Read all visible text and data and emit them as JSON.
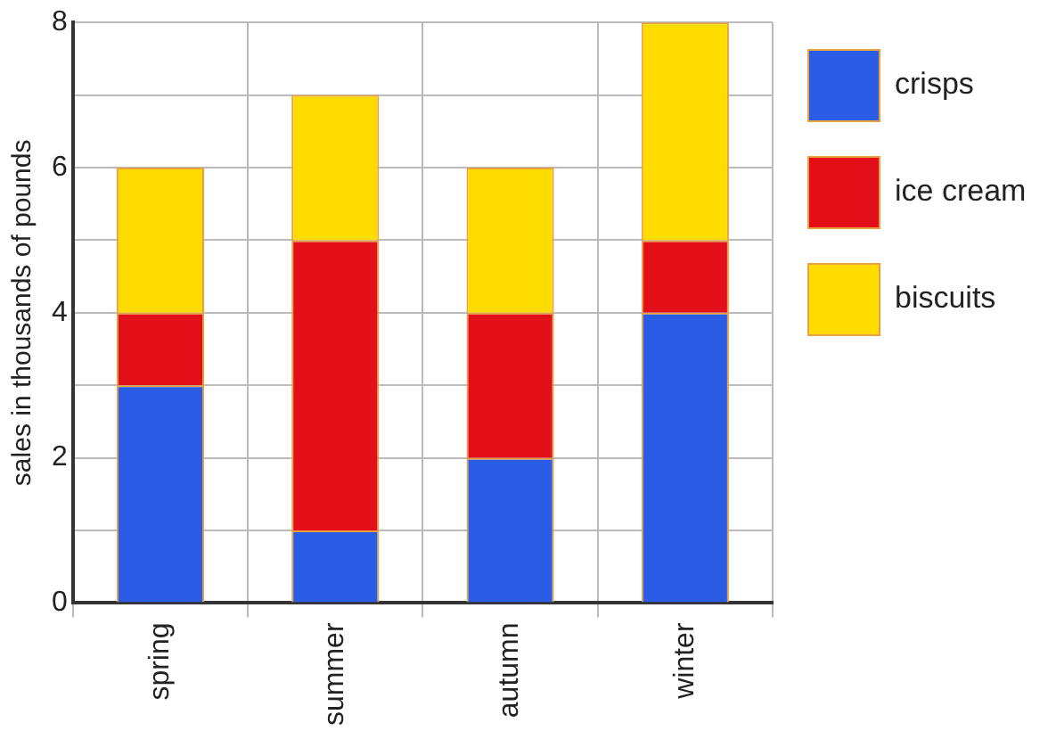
{
  "chart_data": {
    "type": "bar",
    "stacked": true,
    "ylabel": "sales in thousands of pounds",
    "categories": [
      "spring",
      "summer",
      "autumn",
      "winter"
    ],
    "series": [
      {
        "name": "crisps",
        "color": "#2b5ce6",
        "values": [
          3,
          1,
          2,
          4
        ]
      },
      {
        "name": "ice cream",
        "color": "#e3101a",
        "values": [
          1,
          4,
          2,
          1
        ]
      },
      {
        "name": "biscuits",
        "color": "#ffdc00",
        "values": [
          2,
          2,
          2,
          3
        ]
      }
    ],
    "ylim": [
      0,
      8
    ],
    "yticks": [
      0,
      {
        "value": 1,
        "label": null
      },
      2,
      {
        "value": 3,
        "label": null
      },
      4,
      {
        "value": 5,
        "label": null
      },
      6,
      {
        "value": 7,
        "label": null
      },
      8
    ],
    "grid": true,
    "legend": "right"
  }
}
